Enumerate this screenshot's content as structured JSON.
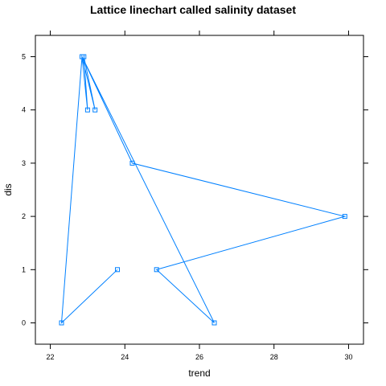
{
  "chart_data": {
    "type": "line",
    "title": "Lattice linechart called salinity dataset",
    "xlabel": "trend",
    "ylabel": "dis",
    "xlim": [
      21.6,
      30.4
    ],
    "ylim": [
      -0.4,
      5.4
    ],
    "xticks": [
      22,
      24,
      26,
      28,
      30
    ],
    "yticks": [
      0,
      1,
      2,
      3,
      4,
      5
    ],
    "grid": false,
    "legend": "none",
    "series": [
      {
        "name": "dis",
        "color": "#0080ff",
        "x": [
          23.8,
          22.3,
          22.85,
          23.0,
          22.9,
          23.2,
          22.85,
          26.4,
          22.85,
          24.2,
          29.9,
          24.85,
          26.4
        ],
        "y": [
          1,
          0,
          5,
          4,
          5,
          4,
          5,
          0,
          5,
          3,
          2,
          1,
          0
        ]
      }
    ]
  }
}
